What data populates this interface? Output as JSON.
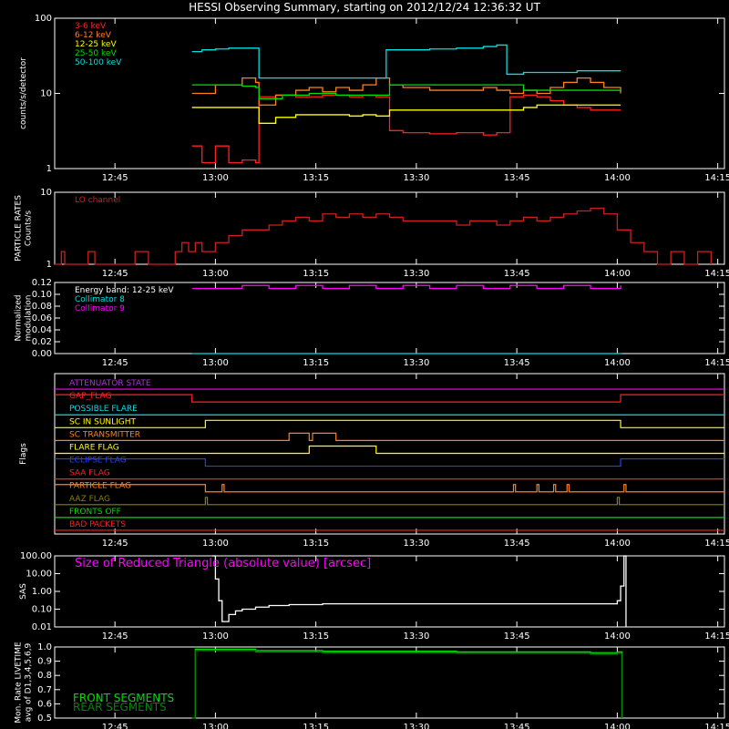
{
  "title": "HESSI Observing Summary, starting on 2012/12/24 12:36:32 UT",
  "time_axis": {
    "ticks": [
      "12:45",
      "13:00",
      "13:15",
      "13:30",
      "13:45",
      "14:00",
      "14:15"
    ],
    "range_min": [
      0,
      100
    ],
    "tick_min": [
      9,
      24,
      39,
      54,
      69,
      84,
      99
    ]
  },
  "chart_data": [
    {
      "type": "line",
      "panel": "count-rates",
      "ylabel": "counts/s/detector",
      "yscale": "log",
      "ylim": [
        1,
        100
      ],
      "yticks": [
        "1",
        "10",
        "100"
      ],
      "legend_position": "top-left",
      "data_span_min": [
        20.5,
        84.7
      ],
      "series": [
        {
          "name": "3-6 keV",
          "color": "#ff2020",
          "x": [
            20.5,
            22,
            24,
            26,
            28,
            30,
            30.5,
            33,
            36,
            40,
            44,
            46,
            48,
            50,
            52,
            56,
            60,
            64,
            66,
            68,
            70,
            72,
            74,
            76,
            78,
            80,
            84.5
          ],
          "y": [
            2.0,
            1.2,
            2.0,
            1.2,
            1.3,
            1.2,
            9.0,
            9.5,
            9.0,
            9.5,
            9.0,
            9.5,
            9.0,
            3.2,
            3.0,
            2.9,
            3.0,
            2.8,
            3.0,
            9.0,
            9.5,
            9.0,
            8.0,
            7.0,
            6.5,
            6.0,
            6.0
          ]
        },
        {
          "name": "6-12 keV",
          "color": "#ff8020",
          "x": [
            20.5,
            24,
            28,
            30,
            30.5,
            33,
            36,
            38,
            40,
            42,
            44,
            46,
            48,
            50,
            52,
            56,
            60,
            64,
            66,
            68,
            70,
            72,
            74,
            76,
            78,
            80,
            82,
            84.5
          ],
          "y": [
            10,
            13,
            16,
            14,
            7.0,
            9.5,
            11,
            12,
            10.5,
            12,
            11,
            13,
            16,
            13,
            12,
            11,
            11,
            12,
            11,
            10,
            11,
            10,
            12,
            14,
            16,
            14,
            12,
            10
          ]
        },
        {
          "name": "12-25 keV",
          "color": "#ffff00",
          "x": [
            20.5,
            24,
            28,
            30,
            30.5,
            33,
            36,
            40,
            44,
            46,
            48,
            50,
            52,
            56,
            60,
            64,
            66,
            68,
            70,
            72,
            76,
            80,
            84.5
          ],
          "y": [
            6.5,
            6.5,
            6.5,
            6.5,
            4.0,
            4.8,
            5.2,
            5.2,
            5.0,
            5.2,
            5.0,
            6.0,
            6.0,
            6.0,
            6.0,
            6.0,
            6.0,
            6.0,
            6.5,
            7.0,
            7.0,
            7.0,
            7.0
          ]
        },
        {
          "name": "25-50 keV",
          "color": "#00dd00",
          "x": [
            20.5,
            24,
            28,
            30,
            30.5,
            34,
            38,
            42,
            46,
            48,
            50,
            54,
            58,
            62,
            66,
            68,
            70,
            74,
            78,
            82,
            84.5
          ],
          "y": [
            13,
            13,
            12.5,
            12,
            8.5,
            9.5,
            10,
            9.5,
            9.5,
            9.5,
            13,
            13,
            13,
            13,
            13,
            13,
            11,
            11,
            11,
            11,
            11
          ]
        },
        {
          "name": "50-100 keV",
          "color": "#00e0e0",
          "x": [
            20.5,
            22,
            24,
            26,
            28,
            30,
            30.5,
            34,
            38,
            42,
            46,
            48,
            49.5,
            52,
            56,
            60,
            64,
            66,
            67.5,
            70,
            74,
            78,
            82,
            84.5
          ],
          "y": [
            36,
            38,
            39,
            40,
            40,
            40,
            16,
            16,
            16,
            16,
            16,
            16,
            38,
            38,
            39,
            40,
            42,
            44,
            18,
            19,
            19,
            20,
            20,
            20
          ]
        }
      ]
    },
    {
      "type": "line",
      "panel": "particle-rates",
      "ylabel": "PARTICLE RATES Counts/s",
      "yscale": "log",
      "ylim": [
        1,
        10
      ],
      "yticks": [
        "1",
        "10"
      ],
      "series": [
        {
          "name": "LO channel",
          "color": "#cc2020",
          "x": [
            0,
            1,
            1.5,
            4,
            5,
            6,
            8,
            12,
            14,
            17,
            18,
            19,
            20,
            21,
            22,
            24,
            26,
            28,
            30,
            32,
            34,
            36,
            38,
            40,
            42,
            44,
            46,
            48,
            50,
            52,
            54,
            56,
            58,
            60,
            62,
            64,
            66,
            68,
            70,
            72,
            74,
            76,
            78,
            80,
            82,
            84,
            86,
            88,
            90,
            92,
            94,
            96,
            98
          ],
          "y": [
            1.0,
            1.5,
            1.0,
            1.0,
            1.5,
            1.0,
            1.0,
            1.5,
            1.0,
            1.0,
            1.5,
            2.0,
            1.5,
            2.0,
            1.5,
            2.0,
            2.5,
            3.0,
            3.0,
            3.5,
            4.0,
            4.5,
            4.0,
            5.0,
            4.5,
            5.0,
            4.5,
            5.0,
            4.5,
            4.0,
            4.0,
            4.0,
            4.0,
            3.5,
            4.0,
            4.0,
            3.5,
            4.0,
            4.5,
            4.0,
            4.5,
            5.0,
            5.5,
            6.0,
            5.0,
            3.0,
            2.0,
            1.5,
            1.0,
            1.5,
            1.0,
            1.5,
            1.0
          ]
        }
      ]
    },
    {
      "type": "line",
      "panel": "modulation",
      "ylabel": "Normalized modulation",
      "ylim": [
        0,
        0.12
      ],
      "yticks": [
        "0.00",
        "0.02",
        "0.04",
        "0.06",
        "0.08",
        "0.10",
        "0.12"
      ],
      "annotation": "Energy band: 12-25 keV",
      "series": [
        {
          "name": "Collimator 8",
          "color": "#00e0e0",
          "x": [
            20.5,
            84.7
          ],
          "y": [
            0.0,
            0.0
          ]
        },
        {
          "name": "Collimator 9",
          "color": "#ff00ff",
          "x": [
            20.5,
            24,
            28,
            32,
            36,
            40,
            44,
            48,
            52,
            56,
            60,
            64,
            68,
            72,
            76,
            80,
            84.5
          ],
          "y": [
            0.11,
            0.11,
            0.115,
            0.11,
            0.115,
            0.11,
            0.115,
            0.11,
            0.115,
            0.11,
            0.115,
            0.11,
            0.115,
            0.11,
            0.115,
            0.11,
            0.115
          ]
        }
      ]
    },
    {
      "type": "line",
      "panel": "flags",
      "ylabel": "Flags",
      "series": [
        {
          "name": "ATTENUATOR STATE",
          "color": "#ff00ff",
          "label_color": "#b030e0",
          "transitions": []
        },
        {
          "name": "GAP_FLAG",
          "color": "#ff2020",
          "transitions": [
            20.5,
            84.5
          ],
          "initial": 1
        },
        {
          "name": "POSSIBLE FLARE",
          "color": "#00e0e0",
          "transitions": []
        },
        {
          "name": "SC IN SUNLIGHT",
          "color": "#ffff00",
          "transitions": [
            22.5,
            84.5
          ],
          "initial": 0
        },
        {
          "name": "SC TRANSMITTER",
          "color": "#ff8020",
          "transitions": [
            35,
            38,
            38.5,
            42
          ],
          "initial": 0
        },
        {
          "name": "FLARE FLAG",
          "color": "#ffff00",
          "transitions": [
            38,
            48
          ],
          "initial": 0
        },
        {
          "name": "ECLIPSE FLAG",
          "color": "#2040ff",
          "transitions": [
            22.5,
            84.5
          ],
          "initial": 1
        },
        {
          "name": "SAA FLAG",
          "color": "#ff2020",
          "transitions": []
        },
        {
          "name": "PARTICLE FLAG",
          "color": "#ff8020",
          "transitions": [
            22.5,
            25,
            25.3,
            68.5,
            68.8,
            72,
            72.3,
            74.5,
            74.8,
            76.5,
            76.8,
            85,
            85.3
          ],
          "initial": 1,
          "pulse_up": true
        },
        {
          "name": "AAZ FLAG",
          "color": "#888000",
          "transitions": [
            22.5,
            22.8,
            84,
            84.3
          ],
          "initial": 0
        },
        {
          "name": "FRONTS OFF",
          "color": "#00dd00",
          "transitions": []
        },
        {
          "name": "BAD PACKETS",
          "color": "#ff2020",
          "transitions": []
        }
      ]
    },
    {
      "type": "line",
      "panel": "sas",
      "ylabel": "SAS",
      "yscale": "log",
      "ylim": [
        0.01,
        100
      ],
      "yticks": [
        "0.01",
        "0.10",
        "1.00",
        "10.00",
        "100.00"
      ],
      "annotation": "Size of Reduced Triangle (absolute value) [arcsec]",
      "series": [
        {
          "name": "SAS",
          "color": "#ffffff",
          "x": [
            23.5,
            24,
            24.5,
            25,
            26,
            27,
            28,
            30,
            32,
            35,
            40,
            45,
            50,
            55,
            60,
            65,
            70,
            75,
            80,
            84,
            84.5,
            85,
            85.3
          ],
          "y": [
            100,
            5,
            0.3,
            0.02,
            0.05,
            0.08,
            0.1,
            0.13,
            0.16,
            0.18,
            0.2,
            0.2,
            0.2,
            0.2,
            0.2,
            0.2,
            0.2,
            0.2,
            0.2,
            0.3,
            2.0,
            100,
            0.01
          ]
        }
      ]
    },
    {
      "type": "line",
      "panel": "livetime",
      "ylabel": "Mon. Rate LIVETIME avg of D1,3,4,5,6,9",
      "ylim": [
        0.5,
        1.0
      ],
      "yticks": [
        "0.5",
        "0.6",
        "0.7",
        "0.8",
        "0.9",
        "1.0"
      ],
      "legend_position": "bottom-left",
      "series": [
        {
          "name": "FRONT SEGMENTS",
          "color": "#00dd00",
          "x": [
            20.5,
            21,
            30,
            40,
            50,
            60,
            70,
            80,
            84,
            84.5,
            84.7
          ],
          "y": [
            0.5,
            0.985,
            0.975,
            0.97,
            0.97,
            0.965,
            0.965,
            0.96,
            0.965,
            0.965,
            0.5
          ]
        },
        {
          "name": "REAR SEGMENTS",
          "color": "#008800",
          "x": [
            20.5,
            21,
            30,
            40,
            50,
            60,
            70,
            80,
            84,
            84.5,
            84.7
          ],
          "y": [
            0.5,
            0.975,
            0.965,
            0.96,
            0.96,
            0.955,
            0.955,
            0.95,
            0.955,
            0.955,
            0.5
          ]
        }
      ]
    }
  ]
}
